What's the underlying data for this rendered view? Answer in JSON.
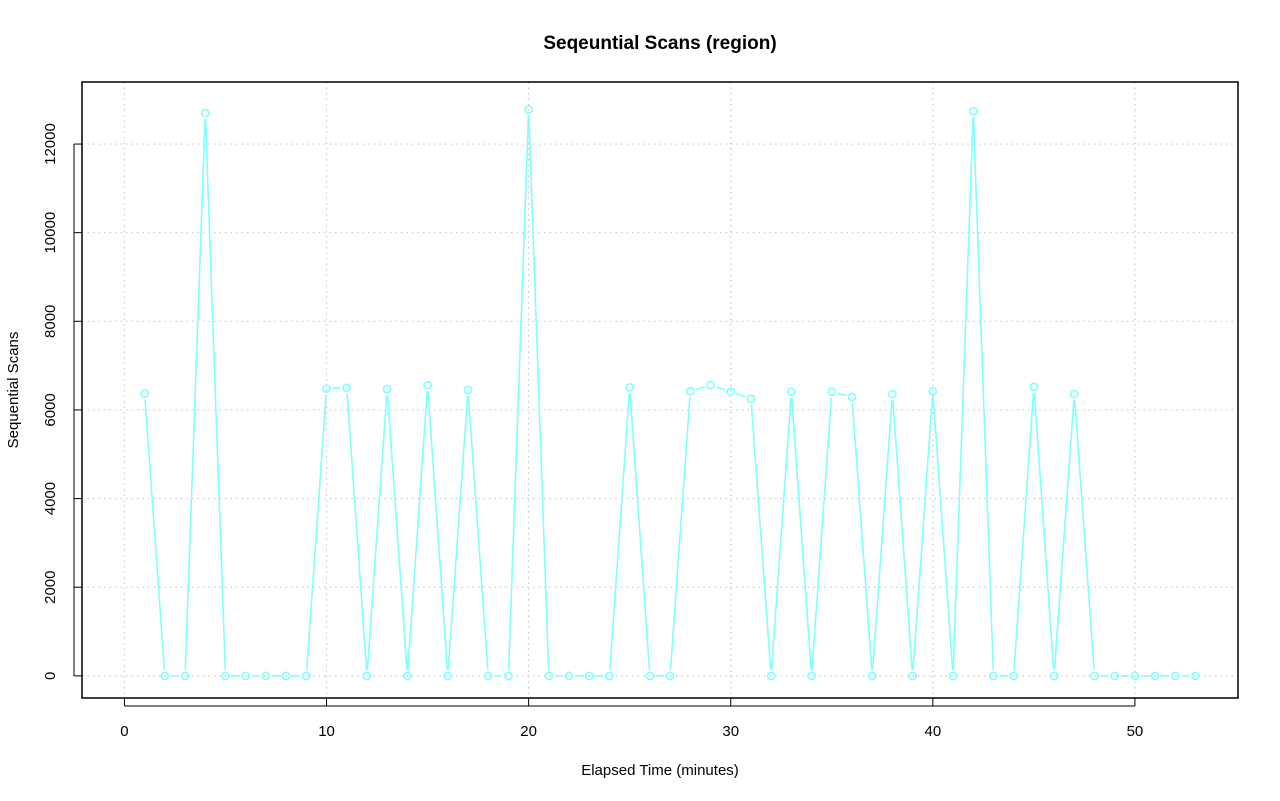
{
  "chart_data": {
    "type": "line",
    "title": "Seqeuntial Scans (region)",
    "xlabel": "Elapsed Time (minutes)",
    "ylabel": "Sequential Scans",
    "xlim": [
      -2.1,
      55.1
    ],
    "ylim": [
      -500,
      13400
    ],
    "xticks": [
      0,
      10,
      20,
      30,
      40,
      50
    ],
    "yticks": [
      0,
      2000,
      4000,
      6000,
      8000,
      10000,
      12000
    ],
    "grid": true,
    "line_color": "#7fffff",
    "series": [
      {
        "x": [
          1,
          2,
          3,
          4,
          5,
          6,
          7,
          8,
          9,
          10,
          11,
          12,
          13,
          14,
          15,
          16,
          17,
          18,
          19,
          20,
          21,
          22,
          23,
          24,
          25,
          26,
          27,
          28,
          29,
          30,
          31,
          32,
          33,
          34,
          35,
          36,
          37,
          38,
          39,
          40,
          41,
          42,
          43,
          44,
          45,
          46,
          47,
          48,
          49,
          50,
          51,
          52,
          53
        ],
        "values": [
          6370,
          0,
          0,
          12700,
          0,
          0,
          0,
          0,
          0,
          6480,
          6500,
          0,
          6470,
          0,
          6560,
          0,
          6450,
          0,
          0,
          12780,
          0,
          0,
          0,
          0,
          6510,
          0,
          0,
          6420,
          6560,
          6410,
          6250,
          0,
          6410,
          0,
          6410,
          6290,
          0,
          6360,
          0,
          6420,
          0,
          12740,
          0,
          0,
          6520,
          0,
          6360,
          0,
          0,
          0,
          0,
          0,
          0
        ]
      }
    ]
  }
}
